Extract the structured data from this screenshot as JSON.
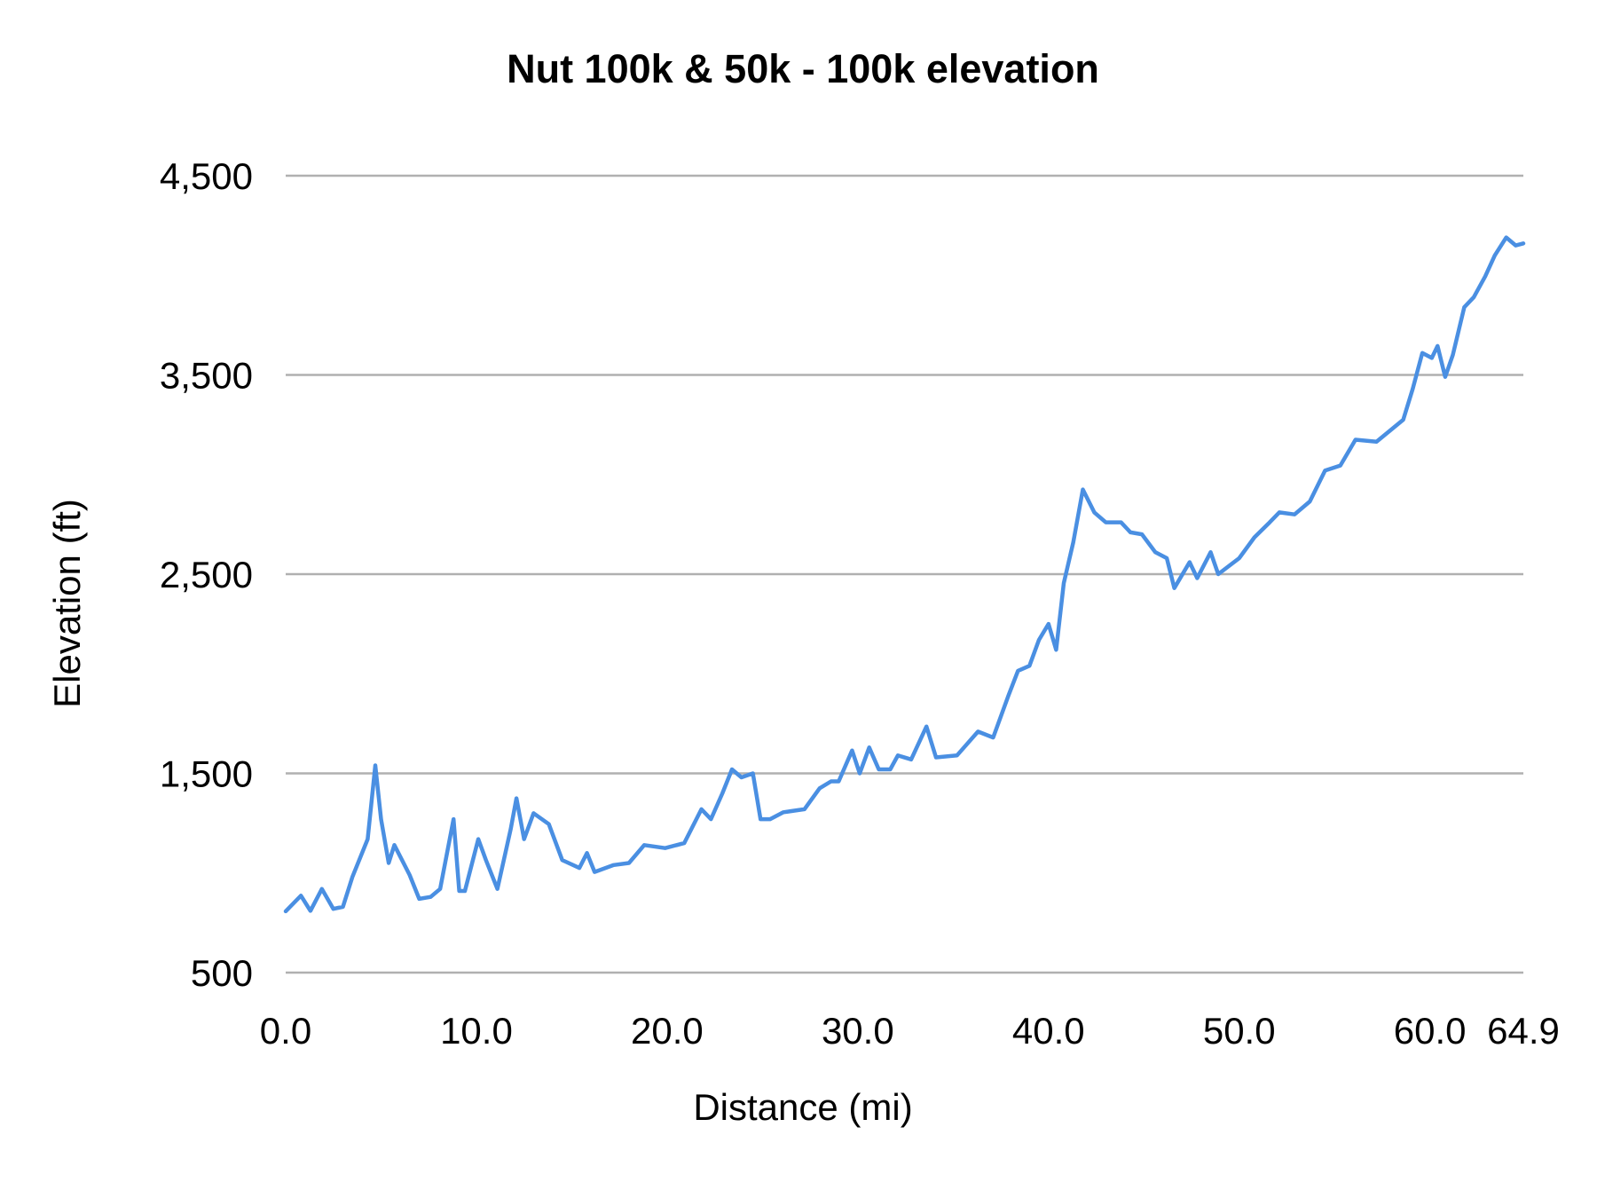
{
  "chart_data": {
    "type": "line",
    "title": "Nut 100k & 50k - 100k elevation",
    "xlabel": "Distance (mi)",
    "ylabel": "Elevation (ft)",
    "xlim": [
      0,
      64.9
    ],
    "ylim": [
      500,
      4500
    ],
    "x_ticks": [
      "0.0",
      "10.0",
      "20.0",
      "30.0",
      "40.0",
      "50.0",
      "60.0",
      "64.9"
    ],
    "x_tick_values": [
      0,
      10,
      20,
      30,
      40,
      50,
      60,
      64.9
    ],
    "y_ticks": [
      "4,500",
      "3,500",
      "2,500",
      "1,500",
      "500"
    ],
    "y_tick_values": [
      4500,
      3500,
      2500,
      1500,
      500
    ],
    "grid": "horizontal",
    "legend": "none",
    "color": "#4a8fe2",
    "series": [
      {
        "x": [
          0,
          0.8,
          1.3,
          1.9,
          2.5,
          3.0,
          3.5,
          4.3,
          4.7,
          5.0,
          5.4,
          5.7,
          6.5,
          7.0,
          7.6,
          8.1,
          8.8,
          9.1,
          9.4,
          10.1,
          10.5,
          11.1,
          11.8,
          12.1,
          12.5,
          13.0,
          13.8,
          14.5,
          15.4,
          15.8,
          16.2,
          17.2,
          18.0,
          18.8,
          19.9,
          20.9,
          21.8,
          22.3,
          22.9,
          23.4,
          23.9,
          24.5,
          24.9,
          25.4,
          26.1,
          27.2,
          28.0,
          28.6,
          29.0,
          29.7,
          30.1,
          30.6,
          31.1,
          31.7,
          32.1,
          32.8,
          33.6,
          34.1,
          35.2,
          36.3,
          37.1,
          37.9,
          38.4,
          39.0,
          39.5,
          40.0,
          40.4,
          40.8,
          41.3,
          41.8,
          42.4,
          43.0,
          43.8,
          44.3,
          44.9,
          45.6,
          46.2,
          46.6,
          47.4,
          47.8,
          48.5,
          48.9,
          50.0,
          50.8,
          51.6,
          52.1,
          52.9,
          53.7,
          54.5,
          55.3,
          56.1,
          57.2,
          58.6,
          59.1,
          59.6,
          60.1,
          60.4,
          60.8,
          61.2,
          61.8,
          62.3,
          62.9,
          63.4,
          64.0,
          64.5,
          64.9
        ],
        "y": [
          808,
          886,
          810,
          920,
          820,
          830,
          980,
          1170,
          1540,
          1270,
          1050,
          1140,
          990,
          870,
          880,
          920,
          1270,
          910,
          910,
          1170,
          1065,
          920,
          1220,
          1375,
          1170,
          1300,
          1245,
          1065,
          1025,
          1100,
          1005,
          1040,
          1050,
          1140,
          1125,
          1150,
          1320,
          1270,
          1400,
          1520,
          1480,
          1500,
          1270,
          1270,
          1305,
          1320,
          1425,
          1460,
          1460,
          1615,
          1500,
          1630,
          1520,
          1520,
          1590,
          1570,
          1735,
          1580,
          1590,
          1710,
          1680,
          1890,
          2015,
          2040,
          2170,
          2250,
          2120,
          2455,
          2660,
          2925,
          2810,
          2760,
          2760,
          2710,
          2700,
          2610,
          2580,
          2430,
          2560,
          2480,
          2610,
          2500,
          2580,
          2685,
          2760,
          2810,
          2800,
          2865,
          3020,
          3045,
          3175,
          3165,
          3275,
          3430,
          3610,
          3585,
          3645,
          3490,
          3600,
          3840,
          3890,
          3995,
          4100,
          4190,
          4150,
          4160
        ]
      }
    ]
  }
}
